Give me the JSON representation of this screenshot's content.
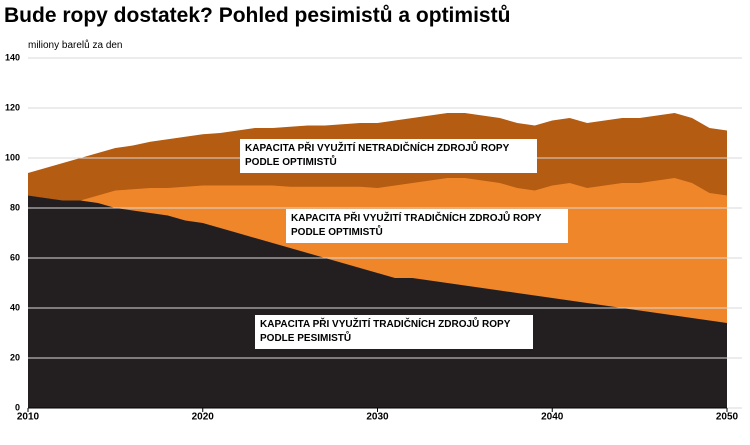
{
  "chart_data": {
    "type": "area",
    "title": "Bude ropy dostatek? Pohled pesimistů a optimistů",
    "y_label": "miliony barelů za den",
    "x": [
      2010,
      2011,
      2012,
      2013,
      2014,
      2015,
      2016,
      2017,
      2018,
      2019,
      2020,
      2021,
      2022,
      2023,
      2024,
      2025,
      2026,
      2027,
      2028,
      2029,
      2030,
      2031,
      2032,
      2033,
      2034,
      2035,
      2036,
      2037,
      2038,
      2039,
      2040,
      2041,
      2042,
      2043,
      2044,
      2045,
      2046,
      2047,
      2048,
      2049,
      2050
    ],
    "series": [
      {
        "name": "KAPACITA PŘI VYUŽITÍ NETRADIČNÍCH ZDROJŮ ROPY PODLE OPTIMISTŮ",
        "color": "#b35c12",
        "values": [
          94,
          96,
          98,
          100,
          102,
          104,
          105,
          106.5,
          107.5,
          108.5,
          109.5,
          110,
          111,
          112,
          112,
          112.5,
          113,
          113,
          113.5,
          114,
          114,
          115,
          116,
          117,
          118,
          118,
          117,
          116,
          114,
          113,
          115,
          116,
          114,
          115,
          116,
          116,
          117,
          118,
          116,
          112,
          111
        ]
      },
      {
        "name": "KAPACITA PŘI VYUŽITÍ TRADIČNÍCH ZDROJŮ ROPY PODLE OPTIMISTŮ",
        "color": "#f0862a",
        "values": [
          85,
          84,
          83,
          83,
          85,
          87,
          87.5,
          88,
          88,
          88.5,
          89,
          89,
          89,
          89,
          89,
          88.5,
          88.5,
          88.5,
          88.5,
          88.5,
          88,
          89,
          90,
          91,
          92,
          92,
          91,
          90,
          88,
          87,
          89,
          90,
          88,
          89,
          90,
          90,
          91,
          92,
          90,
          86,
          85
        ]
      },
      {
        "name": "KAPACITA PŘI VYUŽITÍ TRADIČNÍCH ZDROJŮ ROPY PODLE PESIMISTŮ",
        "color": "#231f20",
        "values": [
          85,
          84,
          83,
          83,
          82,
          80,
          79,
          78,
          77,
          75,
          74,
          72,
          70,
          68,
          66,
          64,
          62,
          60,
          58,
          56,
          54,
          52,
          52,
          51,
          50,
          49,
          48,
          47,
          46,
          45,
          44,
          43,
          42,
          41,
          40,
          39,
          38,
          37,
          36,
          35,
          34
        ]
      }
    ],
    "xlim": [
      2010,
      2050
    ],
    "xticks": [
      2010,
      2020,
      2030,
      2040,
      2050
    ],
    "ylim": [
      0,
      140
    ],
    "yticks": [
      0,
      20,
      40,
      60,
      80,
      100,
      120,
      140
    ],
    "grid": true
  }
}
